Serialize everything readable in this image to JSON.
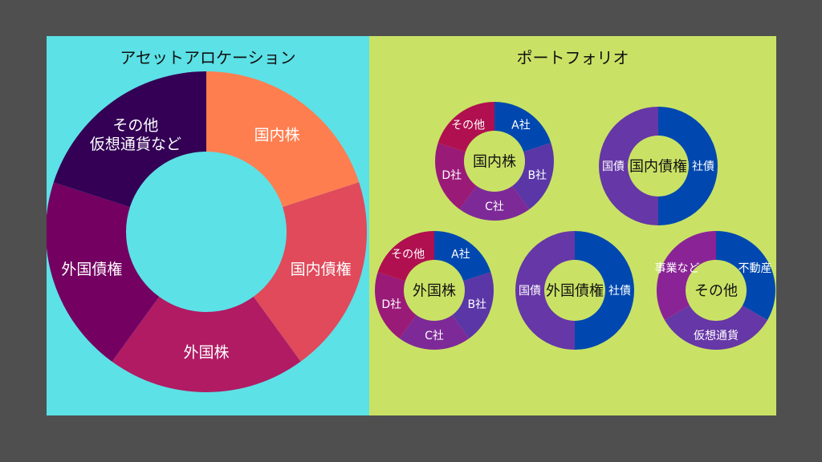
{
  "colors": {
    "background": "#4f4f4f",
    "left_panel": "#5ce1e6",
    "right_panel": "#c9e265"
  },
  "allocation": {
    "title": "アセットアロケーション",
    "segments": [
      {
        "label": "国内株",
        "color": "#ff7e50",
        "share": 0.2
      },
      {
        "label": "国内債権",
        "color": "#e04a5b",
        "share": 0.2
      },
      {
        "label": "外国株",
        "color": "#b01b63",
        "share": 0.2
      },
      {
        "label": "外国債権",
        "color": "#740061",
        "share": 0.2
      },
      {
        "label": "その他\n仮想通貨など",
        "color": "#330055",
        "share": 0.2
      }
    ]
  },
  "portfolio": {
    "title": "ポートフォリオ",
    "donuts": [
      {
        "center": "国内株",
        "segments": [
          {
            "label": "A社",
            "color": "#0048b0",
            "share": 0.2
          },
          {
            "label": "B社",
            "color": "#5a36a6",
            "share": 0.2
          },
          {
            "label": "C社",
            "color": "#7d2a98",
            "share": 0.2
          },
          {
            "label": "D社",
            "color": "#9a1a78",
            "share": 0.2
          },
          {
            "label": "その他",
            "color": "#b0104f",
            "share": 0.2
          }
        ]
      },
      {
        "center": "国内債権",
        "segments": [
          {
            "label": "社債",
            "color": "#0048b0",
            "share": 0.5
          },
          {
            "label": "国債",
            "color": "#6637a6",
            "share": 0.5
          }
        ]
      },
      {
        "center": "外国株",
        "segments": [
          {
            "label": "A社",
            "color": "#0048b0",
            "share": 0.2
          },
          {
            "label": "B社",
            "color": "#5a36a6",
            "share": 0.2
          },
          {
            "label": "C社",
            "color": "#7d2a98",
            "share": 0.2
          },
          {
            "label": "D社",
            "color": "#9a1a78",
            "share": 0.2
          },
          {
            "label": "その他",
            "color": "#b0104f",
            "share": 0.2
          }
        ]
      },
      {
        "center": "外国債権",
        "segments": [
          {
            "label": "社債",
            "color": "#0048b0",
            "share": 0.5
          },
          {
            "label": "国債",
            "color": "#6637a6",
            "share": 0.5
          }
        ]
      },
      {
        "center": "その他",
        "segments": [
          {
            "label": "不動産",
            "color": "#0048b0",
            "share": 0.3333
          },
          {
            "label": "仮想通貨",
            "color": "#6637a6",
            "share": 0.3333
          },
          {
            "label": "事業など",
            "color": "#8a2496",
            "share": 0.3334
          }
        ]
      }
    ]
  }
}
